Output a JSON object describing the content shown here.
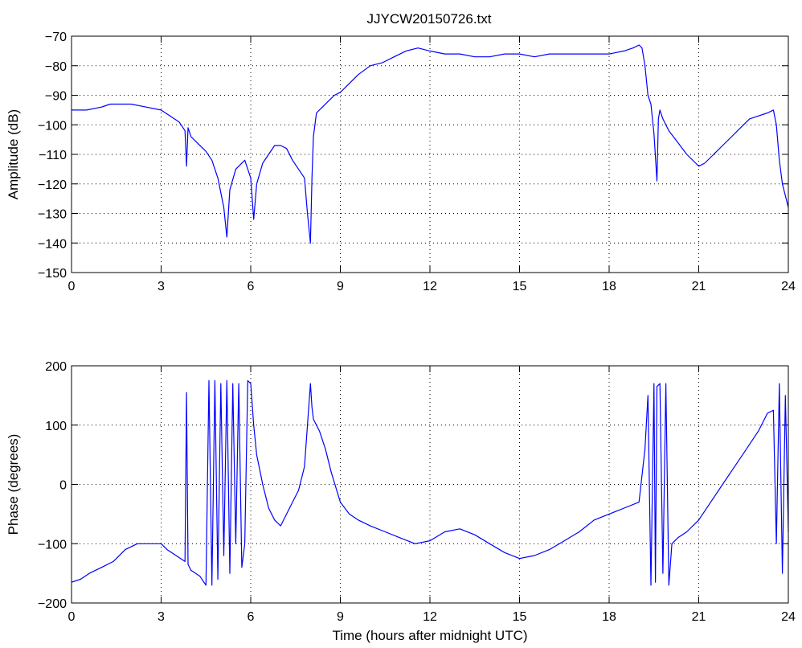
{
  "figure": {
    "title": "JJYCW20150726.txt"
  },
  "chart_data": [
    {
      "type": "line",
      "title": "JJYCW20150726.txt",
      "xlabel": "",
      "ylabel": "Amplitude (dB)",
      "xlim": [
        0,
        24
      ],
      "ylim": [
        -150,
        -70
      ],
      "xticks": [
        "0",
        "3",
        "6",
        "9",
        "12",
        "15",
        "18",
        "21",
        "24"
      ],
      "yticks": [
        "-70",
        "-80",
        "-90",
        "-100",
        "-110",
        "-120",
        "-130",
        "-140",
        "-150"
      ],
      "grid": true,
      "color": "#0000ff",
      "series": [
        {
          "x": [
            0,
            0.5,
            1.0,
            1.3,
            1.6,
            2.0,
            2.5,
            3.0,
            3.3,
            3.6,
            3.8,
            3.85,
            3.9,
            4.0,
            4.2,
            4.5,
            4.7,
            4.9,
            5.1,
            5.2,
            5.3,
            5.5,
            5.8,
            6.0,
            6.1,
            6.2,
            6.4,
            6.6,
            6.8,
            7.0,
            7.2,
            7.4,
            7.6,
            7.8,
            7.9,
            8.0,
            8.05,
            8.1,
            8.2,
            8.4,
            8.6,
            8.8,
            9.0,
            9.3,
            9.6,
            10.0,
            10.4,
            10.8,
            11.2,
            11.6,
            12.0,
            12.5,
            13.0,
            13.5,
            14.0,
            14.5,
            15.0,
            15.5,
            16.0,
            16.5,
            17.0,
            17.5,
            18.0,
            18.5,
            18.8,
            19.0,
            19.1,
            19.2,
            19.3,
            19.4,
            19.5,
            19.6,
            19.65,
            19.7,
            19.8,
            20.0,
            20.3,
            20.6,
            20.9,
            21.0,
            21.2,
            21.5,
            21.8,
            22.1,
            22.4,
            22.7,
            23.0,
            23.3,
            23.5,
            23.6,
            23.7,
            23.8,
            23.9,
            24.0
          ],
          "y": [
            -95,
            -95,
            -94,
            -93,
            -93,
            -93,
            -94,
            -95,
            -97,
            -99,
            -102,
            -114,
            -101,
            -104,
            -106,
            -109,
            -112,
            -118,
            -128,
            -138,
            -122,
            -115,
            -112,
            -118,
            -132,
            -120,
            -113,
            -110,
            -107,
            -107,
            -108,
            -112,
            -115,
            -118,
            -130,
            -140,
            -118,
            -104,
            -96,
            -94,
            -92,
            -90,
            -89,
            -86,
            -83,
            -80,
            -79,
            -77,
            -75,
            -74,
            -75,
            -76,
            -76,
            -77,
            -77,
            -76,
            -76,
            -77,
            -76,
            -76,
            -76,
            -76,
            -76,
            -75,
            -74,
            -73,
            -74,
            -80,
            -90,
            -93,
            -103,
            -119,
            -98,
            -95,
            -98,
            -102,
            -106,
            -110,
            -113,
            -114,
            -113,
            -110,
            -107,
            -104,
            -101,
            -98,
            -97,
            -96,
            -95,
            -100,
            -112,
            -120,
            -124,
            -128
          ]
        }
      ]
    },
    {
      "type": "line",
      "title": "",
      "xlabel": "Time (hours after midnight UTC)",
      "ylabel": "Phase (degrees)",
      "xlim": [
        0,
        24
      ],
      "ylim": [
        -200,
        200
      ],
      "xticks": [
        "0",
        "3",
        "6",
        "9",
        "12",
        "15",
        "18",
        "21",
        "24"
      ],
      "yticks": [
        "200",
        "100",
        "0",
        "-100",
        "-200"
      ],
      "grid": true,
      "color": "#0000ff",
      "series": [
        {
          "x": [
            0,
            0.3,
            0.6,
            1.0,
            1.4,
            1.8,
            2.2,
            2.6,
            3.0,
            3.2,
            3.5,
            3.8,
            3.85,
            3.9,
            4.0,
            4.3,
            4.5,
            4.6,
            4.7,
            4.8,
            4.9,
            5.0,
            5.1,
            5.2,
            5.3,
            5.4,
            5.5,
            5.6,
            5.7,
            5.8,
            5.9,
            6.0,
            6.1,
            6.2,
            6.4,
            6.6,
            6.8,
            7.0,
            7.2,
            7.4,
            7.6,
            7.8,
            7.9,
            8.0,
            8.05,
            8.1,
            8.3,
            8.5,
            8.7,
            9.0,
            9.3,
            9.6,
            10.0,
            10.5,
            11.0,
            11.5,
            12.0,
            12.5,
            13.0,
            13.5,
            14.0,
            14.5,
            15.0,
            15.5,
            16.0,
            16.5,
            17.0,
            17.5,
            18.0,
            18.5,
            19.0,
            19.2,
            19.3,
            19.4,
            19.5,
            19.55,
            19.6,
            19.7,
            19.8,
            19.9,
            20.0,
            20.1,
            20.3,
            20.6,
            21.0,
            21.4,
            21.8,
            22.2,
            22.6,
            23.0,
            23.3,
            23.5,
            23.6,
            23.7,
            23.8,
            23.9,
            24.0
          ],
          "y": [
            -165,
            -160,
            -150,
            -140,
            -130,
            -110,
            -100,
            -100,
            -100,
            -110,
            -120,
            -130,
            155,
            -135,
            -145,
            -155,
            -170,
            175,
            -170,
            175,
            -160,
            170,
            -120,
            175,
            -150,
            170,
            -100,
            170,
            -140,
            -100,
            175,
            170,
            100,
            50,
            0,
            -40,
            -60,
            -70,
            -50,
            -30,
            -10,
            30,
            100,
            170,
            130,
            110,
            90,
            60,
            20,
            -30,
            -50,
            -60,
            -70,
            -80,
            -90,
            -100,
            -95,
            -80,
            -75,
            -85,
            -100,
            -115,
            -125,
            -120,
            -110,
            -95,
            -80,
            -60,
            -50,
            -40,
            -30,
            60,
            150,
            -170,
            170,
            -165,
            165,
            170,
            -150,
            170,
            -170,
            -100,
            -90,
            -80,
            -60,
            -30,
            0,
            30,
            60,
            90,
            120,
            125,
            -100,
            170,
            -150,
            150,
            -80
          ]
        }
      ]
    }
  ]
}
